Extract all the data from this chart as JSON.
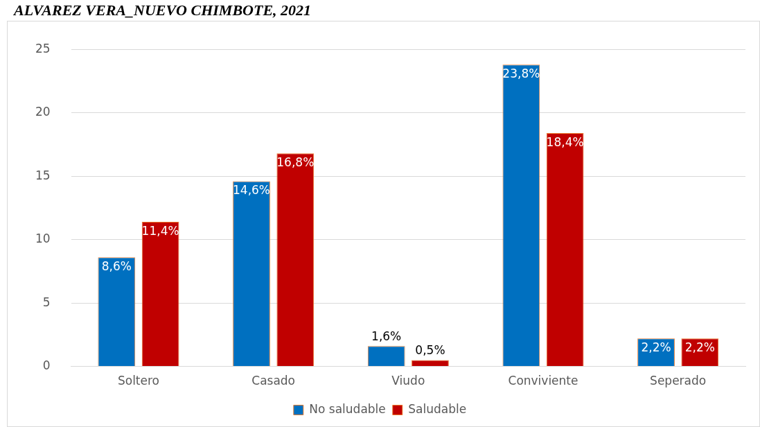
{
  "chart_data": {
    "type": "bar",
    "title": "ALVAREZ VERA_NUEVO CHIMBOTE, 2021",
    "categories": [
      "Soltero",
      "Casado",
      "Viudo",
      "Conviviente",
      "Seperado"
    ],
    "series": [
      {
        "name": "No saludable",
        "color": "#0070c0",
        "values": [
          8.6,
          14.6,
          1.6,
          23.8,
          2.2
        ],
        "value_labels": [
          "8,6%",
          "14,6%",
          "1,6%",
          "23,8%",
          "2,2%"
        ]
      },
      {
        "name": "Saludable",
        "color": "#c00000",
        "values": [
          11.4,
          16.8,
          0.5,
          18.4,
          2.2
        ],
        "value_labels": [
          "11,4%",
          "16,8%",
          "0,5%",
          "18,4%",
          "2,2%"
        ]
      }
    ],
    "ylim": [
      0,
      25
    ],
    "yticks": [
      0,
      5,
      10,
      15,
      20,
      25
    ],
    "grid": "y",
    "legend": "bottom"
  }
}
